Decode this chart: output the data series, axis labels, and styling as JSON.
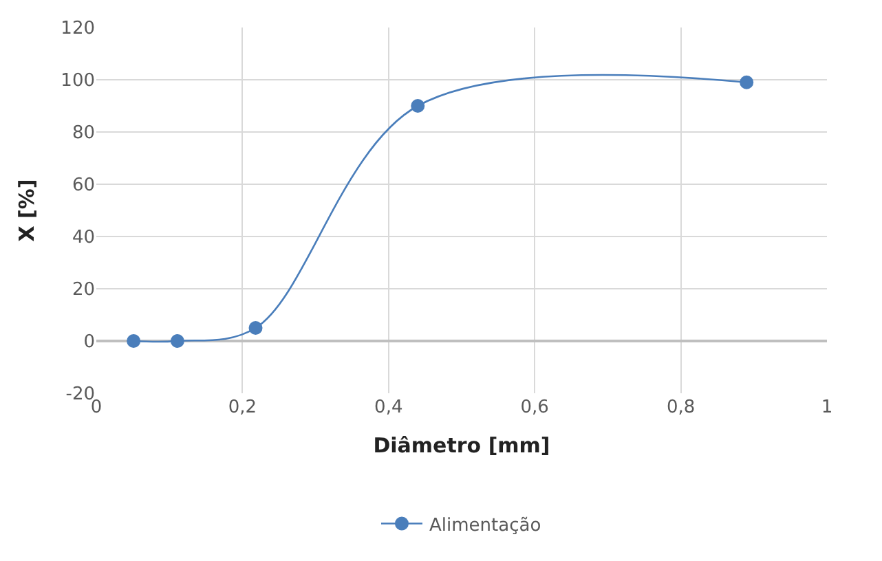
{
  "chart_data": {
    "type": "line",
    "xlabel": "Diâmetro [mm]",
    "ylabel": "X [%]",
    "series": [
      {
        "name": "Alimentação",
        "color": "#4a7ebb",
        "x": [
          0.051,
          0.111,
          0.218,
          0.44,
          0.89
        ],
        "values": [
          0,
          0,
          5,
          90,
          99
        ]
      }
    ],
    "xlim": [
      0,
      1
    ],
    "xticks": [
      {
        "value": 0,
        "label": "0"
      },
      {
        "value": 0.2,
        "label": "0,2"
      },
      {
        "value": 0.4,
        "label": "0,4"
      },
      {
        "value": 0.6,
        "label": "0,6"
      },
      {
        "value": 0.8,
        "label": "0,8"
      },
      {
        "value": 1,
        "label": "1"
      }
    ],
    "ylim": [
      -20,
      120
    ],
    "yticks": [
      -20,
      0,
      20,
      40,
      60,
      80,
      100,
      120
    ],
    "grid": true,
    "legend": "bottom",
    "marker": "circle",
    "line_style": "solid"
  }
}
